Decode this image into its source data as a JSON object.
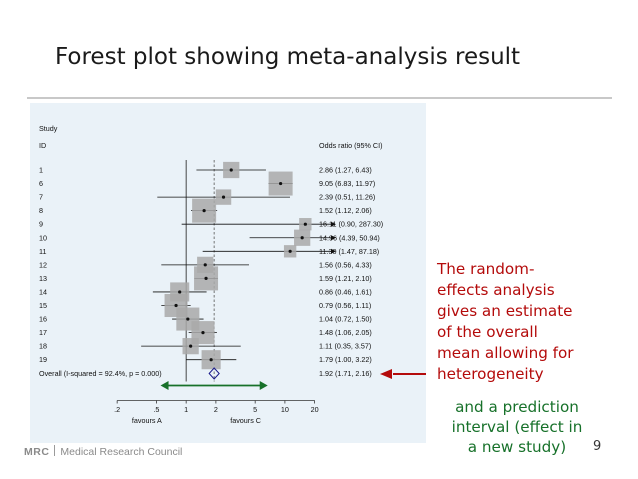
{
  "slide": {
    "title": "Forest plot showing meta-analysis result",
    "red_note": [
      "The random-",
      "effects analysis",
      "gives an estimate",
      "of the overall",
      "mean allowing for",
      "heterogeneity"
    ],
    "green_note": [
      "and a prediction",
      "interval (effect in",
      "a new study)"
    ],
    "page_number": "9",
    "logo": {
      "mark": "MRC",
      "name": "Medical Research Council"
    },
    "colors": {
      "red_note": "#b40b0b",
      "green_note": "#17712a",
      "panel_background": "#eaf2f8",
      "diamond": "#1a1a8c"
    }
  },
  "chart_data": {
    "type": "forest",
    "header_study": "Study",
    "header_id": "ID",
    "header_stat": "Odds ratio (95% CI)",
    "x_scale": "log",
    "xlim": [
      0.125,
      30
    ],
    "x_ticks": [
      0.2,
      0.5,
      1,
      2,
      5,
      10,
      20
    ],
    "x_tick_labels": [
      ".2",
      ".5",
      "1",
      "2",
      "5",
      "10",
      "20"
    ],
    "xlabel_left": "favours A",
    "xlabel_right": "favours C",
    "studies": [
      {
        "id": "1",
        "or": 2.86,
        "lo": 1.27,
        "hi": 6.43,
        "label": "2.86 (1.27, 6.43)",
        "weight": 0.35,
        "arrow": false
      },
      {
        "id": "6",
        "or": 9.05,
        "lo": 6.83,
        "hi": 11.97,
        "label": "9.05 (6.83, 11.97)",
        "weight": 1.0,
        "arrow": false
      },
      {
        "id": "7",
        "or": 2.39,
        "lo": 0.51,
        "hi": 11.26,
        "label": "2.39 (0.51, 11.26)",
        "weight": 0.3,
        "arrow": false
      },
      {
        "id": "8",
        "or": 1.52,
        "lo": 1.12,
        "hi": 2.06,
        "label": "1.52 (1.12, 2.06)",
        "weight": 1.0,
        "arrow": false
      },
      {
        "id": "9",
        "or": 16.11,
        "lo": 0.9,
        "hi": 287.3,
        "label": "16.11 (0.90, 287.30)",
        "weight": 0.15,
        "arrow": true
      },
      {
        "id": "10",
        "or": 14.96,
        "lo": 4.39,
        "hi": 50.94,
        "label": "14.96 (4.39, 50.94)",
        "weight": 0.35,
        "arrow": true
      },
      {
        "id": "11",
        "or": 11.3,
        "lo": 1.47,
        "hi": 87.18,
        "label": "11.30 (1.47, 87.18)",
        "weight": 0.15,
        "arrow": true
      },
      {
        "id": "12",
        "or": 1.56,
        "lo": 0.56,
        "hi": 4.33,
        "label": "1.56 (0.56, 4.33)",
        "weight": 0.35,
        "arrow": false
      },
      {
        "id": "13",
        "or": 1.59,
        "lo": 1.21,
        "hi": 2.1,
        "label": "1.59 (1.21, 2.10)",
        "weight": 1.0,
        "arrow": false
      },
      {
        "id": "14",
        "or": 0.86,
        "lo": 0.46,
        "hi": 1.61,
        "label": "0.86 (0.46, 1.61)",
        "weight": 0.55,
        "arrow": false
      },
      {
        "id": "15",
        "or": 0.79,
        "lo": 0.56,
        "hi": 1.11,
        "label": "0.79 (0.56, 1.11)",
        "weight": 0.9,
        "arrow": false
      },
      {
        "id": "16",
        "or": 1.04,
        "lo": 0.72,
        "hi": 1.5,
        "label": "1.04 (0.72, 1.50)",
        "weight": 0.9,
        "arrow": false
      },
      {
        "id": "17",
        "or": 1.48,
        "lo": 1.06,
        "hi": 2.05,
        "label": "1.48 (1.06, 2.05)",
        "weight": 0.9,
        "arrow": false
      },
      {
        "id": "18",
        "or": 1.11,
        "lo": 0.35,
        "hi": 3.57,
        "label": "1.11 (0.35, 3.57)",
        "weight": 0.35,
        "arrow": false
      },
      {
        "id": "19",
        "or": 1.79,
        "lo": 1.0,
        "hi": 3.22,
        "label": "1.79 (1.00, 3.22)",
        "weight": 0.55,
        "arrow": false
      }
    ],
    "overall": {
      "label_left": "Overall  (I-squared = 92.4%, p = 0.000)",
      "or": 1.92,
      "lo": 1.71,
      "hi": 2.16,
      "label": "1.92 (1.71, 2.16)"
    },
    "prediction_interval": {
      "lo": 0.55,
      "hi": 6.7
    }
  }
}
